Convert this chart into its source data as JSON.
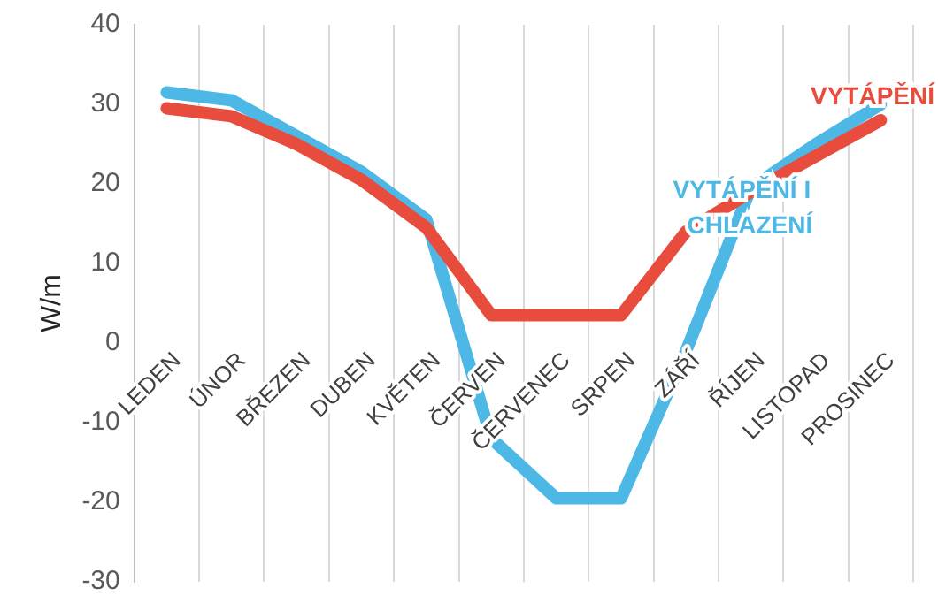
{
  "chart_data": {
    "type": "line",
    "ylabel": "W/m",
    "categories": [
      "LEDEN",
      "ÚNOR",
      "BŘEZEN",
      "DUBEN",
      "KVĚTEN",
      "ČERVEN",
      "ČERVENEC",
      "SRPEN",
      "ZÁŘÍ",
      "ŘÍJEN",
      "LISTOPAD",
      "PROSINEC"
    ],
    "series": [
      {
        "name": "VYTÁPĚNÍ",
        "color": "#e84c3d",
        "values": [
          29.5,
          28.5,
          25,
          20.5,
          14.5,
          3.5,
          3.5,
          3.5,
          14,
          19,
          23.5,
          28
        ]
      },
      {
        "name": "VYTÁPĚNÍ I CHLAZENÍ",
        "color": "#4db8e6",
        "values": [
          31.5,
          30.5,
          26,
          21.5,
          15.5,
          -12,
          -19.5,
          -19.5,
          -1,
          19.5,
          25,
          30
        ]
      }
    ],
    "ylim": [
      -30,
      40
    ],
    "yticks": [
      -30,
      -20,
      -10,
      0,
      10,
      20,
      30,
      40
    ],
    "grid": "x",
    "legend": false,
    "line_style": "solid"
  }
}
